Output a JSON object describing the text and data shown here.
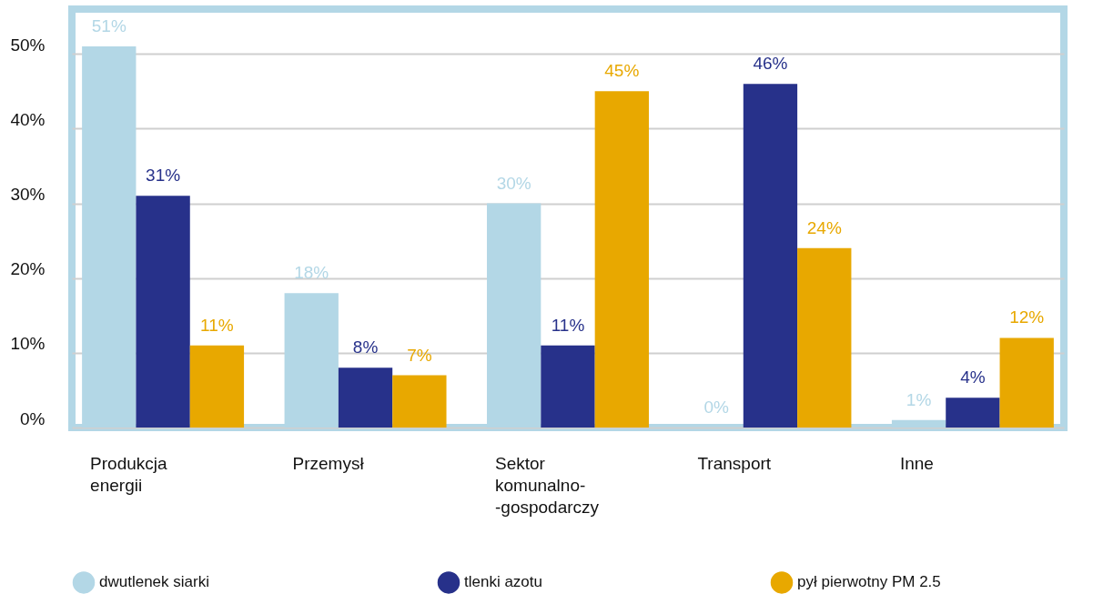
{
  "chart_data": {
    "type": "bar",
    "categories": [
      "Produkcja energii",
      "Przemysł",
      "Sektor komunalno- -gospodarczy",
      "Transport",
      "Inne"
    ],
    "series": [
      {
        "name": "dwutlenek siarki",
        "color": "#b3d7e6",
        "values": [
          51,
          18,
          30,
          0,
          1
        ],
        "value_labels": [
          "51%",
          "18%",
          "30%",
          "0%",
          "1%"
        ]
      },
      {
        "name": "tlenki azotu",
        "color": "#27318a",
        "values": [
          31,
          8,
          11,
          46,
          4
        ],
        "value_labels": [
          "31%",
          "8%",
          "11%",
          "46%",
          "4%"
        ]
      },
      {
        "name": "pył pierwotny PM 2.5",
        "color": "#e8a800",
        "values": [
          11,
          7,
          45,
          24,
          12
        ],
        "value_labels": [
          "11%",
          "7%",
          "45%",
          "24%",
          "12%"
        ]
      }
    ],
    "ylim": [
      0,
      56
    ],
    "yticks": [
      {
        "value": 0,
        "label": "0%"
      },
      {
        "value": 10,
        "label": "10%"
      },
      {
        "value": 20,
        "label": "20%"
      },
      {
        "value": 30,
        "label": "30%"
      },
      {
        "value": 40,
        "label": "40%"
      },
      {
        "value": 50,
        "label": "50%"
      }
    ],
    "grid": "y",
    "legend": "bottom"
  }
}
